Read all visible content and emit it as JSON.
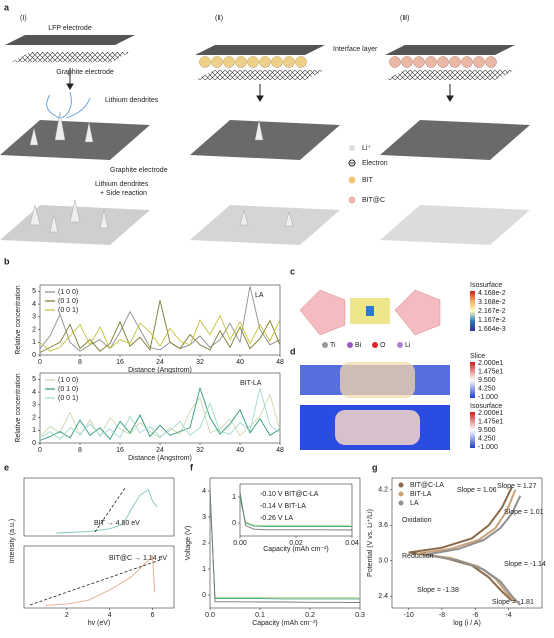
{
  "panels": {
    "a": {
      "letter": "a",
      "col1": "(Ⅰ)",
      "col2": "(Ⅱ)",
      "col3": "(Ⅲ)",
      "lfp": "LFP electrode",
      "graphite_top": "Graphite electrode",
      "interface": "Interface layer",
      "dendrites": "Lithium dendrites",
      "graphite_mid": "Graphite electrode",
      "dendrites2": "Lithium dendrites",
      "side": "+ Side reaction",
      "legend": [
        "Li⁺",
        "Electron",
        "BIT",
        "BIT@C"
      ]
    },
    "b": {
      "letter": "b"
    },
    "c": {
      "letter": "c",
      "bar_title": "Isosurface",
      "bar_labels": [
        "4.168e-2",
        "3.168e-2",
        "2.167e-2",
        "1.167e-2",
        "1.664e-3"
      ],
      "atoms": [
        "Ti",
        "Bi",
        "O",
        "Li"
      ]
    },
    "d": {
      "letter": "d",
      "bar1_title": "Slice",
      "bar1_labels": [
        "2.000e1",
        "1.475e1",
        "9.500",
        "4.250",
        "-1.000"
      ],
      "bar2_title": "Isosurface",
      "bar2_labels": [
        "2.000e1",
        "1.475e1",
        "9.500",
        "4.250",
        "-1.000"
      ]
    },
    "e": {
      "letter": "e"
    },
    "f": {
      "letter": "f"
    },
    "g": {
      "letter": "g"
    }
  },
  "chart_data": [
    {
      "type": "line",
      "ylabel": "Relative concentration",
      "xlabel": "Distance (Angstrom)",
      "annotations": [
        "LA"
      ],
      "legend": "upper left",
      "x": [
        0,
        2,
        4,
        6,
        8,
        10,
        12,
        14,
        16,
        18,
        20,
        22,
        24,
        26,
        28,
        30,
        32,
        34,
        36,
        38,
        40,
        42,
        44,
        46,
        48
      ],
      "xlim": [
        0,
        48
      ],
      "xticks": [
        0,
        8,
        16,
        24,
        32,
        40,
        48
      ],
      "ylim": [
        0,
        5.5
      ],
      "yticks": [
        0,
        1,
        2,
        3,
        4,
        5
      ],
      "series": [
        {
          "name": "(1 0 0)",
          "color": "#8c8c8c",
          "values": [
            0.5,
            1.5,
            3.2,
            1.0,
            0.3,
            0.8,
            1.2,
            0.5,
            1.8,
            3.4,
            2.0,
            0.6,
            0.4,
            1.0,
            0.5,
            0.8,
            1.5,
            0.6,
            1.2,
            2.5,
            1.0,
            5.4,
            2.0,
            0.8,
            1.2
          ]
        },
        {
          "name": "(0 1 0)",
          "color": "#7d7a2a",
          "values": [
            0.2,
            0.6,
            1.0,
            2.4,
            0.5,
            1.2,
            0.3,
            0.9,
            2.6,
            0.7,
            1.4,
            0.4,
            4.3,
            1.0,
            0.5,
            1.6,
            0.8,
            0.4,
            1.9,
            0.6,
            2.2,
            0.5,
            1.3,
            2.7,
            0.8
          ]
        },
        {
          "name": "(0 0 1)",
          "color": "#c4c23a",
          "values": [
            1.0,
            0.3,
            0.6,
            1.5,
            2.4,
            0.8,
            2.2,
            0.5,
            1.2,
            0.9,
            2.5,
            1.8,
            0.7,
            2.1,
            1.1,
            0.8,
            2.7,
            1.6,
            3.1,
            1.2,
            2.6,
            0.9,
            2.4,
            1.1,
            2.8
          ]
        }
      ]
    },
    {
      "type": "line",
      "ylabel": "Relative concentration",
      "xlabel": "Distance (Angstrom)",
      "annotations": [
        "BIT-LA"
      ],
      "legend": "upper left",
      "x": [
        0,
        2,
        4,
        6,
        8,
        10,
        12,
        14,
        16,
        18,
        20,
        22,
        24,
        26,
        28,
        30,
        32,
        34,
        36,
        38,
        40,
        42,
        44,
        46,
        48
      ],
      "xlim": [
        0,
        48
      ],
      "xticks": [
        0,
        8,
        16,
        24,
        32,
        40,
        48
      ],
      "ylim": [
        0,
        5.5
      ],
      "yticks": [
        0,
        1,
        2,
        3,
        4,
        5
      ],
      "series": [
        {
          "name": "(1 0 0)",
          "color": "#c9d9b0",
          "values": [
            0.5,
            1.3,
            0.8,
            2.4,
            0.6,
            1.8,
            0.5,
            2.0,
            1.1,
            0.7,
            1.6,
            0.9,
            0.4,
            1.2,
            0.7,
            2.5,
            3.6,
            0.8,
            1.1,
            1.9,
            0.6,
            1.3,
            2.1,
            3.8,
            1.0
          ]
        },
        {
          "name": "(0 1 0)",
          "color": "#2a9a78",
          "values": [
            0.2,
            0.5,
            0.9,
            0.4,
            1.8,
            0.6,
            1.2,
            0.3,
            1.7,
            0.8,
            2.2,
            0.5,
            1.4,
            0.6,
            0.9,
            1.2,
            4.3,
            2.0,
            0.7,
            1.5,
            2.6,
            0.8,
            1.9,
            0.6,
            1.1
          ]
        },
        {
          "name": "(0 0 1)",
          "color": "#9fd8cf",
          "values": [
            0.4,
            0.9,
            0.3,
            1.2,
            0.7,
            1.5,
            0.6,
            1.1,
            0.4,
            2.1,
            0.8,
            1.3,
            0.5,
            1.0,
            1.7,
            0.6,
            1.2,
            3.1,
            0.9,
            0.7,
            1.6,
            1.0,
            4.3,
            1.4,
            0.8
          ]
        }
      ]
    },
    {
      "type": "line",
      "annotations": [
        "BIT → 4.60 eV"
      ],
      "x": [
        1.5,
        2,
        3,
        4,
        4.6,
        5,
        5.4,
        5.8,
        6.0,
        6.2
      ],
      "xlim": [
        0,
        7
      ],
      "ylim": [
        0,
        2
      ],
      "series": [
        {
          "color": "#7fc6c0",
          "values": [
            0.1,
            0.12,
            0.15,
            0.25,
            0.4,
            0.9,
            1.4,
            1.6,
            1.2,
            1.0
          ]
        }
      ]
    },
    {
      "type": "line",
      "ylabel": "Intensity (a.u.)",
      "xlabel": "hv (eV)",
      "annotations": [
        "BIT@C → 1.14 eV"
      ],
      "x": [
        1,
        2,
        3,
        4,
        5,
        5.5,
        6,
        6.1
      ],
      "xlim": [
        0,
        7
      ],
      "xticks": [
        2,
        4,
        6
      ],
      "ylim": [
        0,
        1.2
      ],
      "series": [
        {
          "color": "#e8a98a",
          "values": [
            0.05,
            0.08,
            0.15,
            0.35,
            0.6,
            0.8,
            1.0,
            0.3
          ]
        }
      ]
    },
    {
      "type": "line",
      "ylabel": "Voltage (V)",
      "xlabel": "Capacity (mAh cm⁻²)",
      "x": [
        0,
        0.01,
        0.02,
        0.05,
        0.1,
        0.15,
        0.2,
        0.25,
        0.3
      ],
      "xlim": [
        0,
        0.3
      ],
      "xticks": [
        {
          "value": 0,
          "label": "0.0"
        },
        0.1,
        0.2,
        0.3
      ],
      "ylim": [
        -0.5,
        4.5
      ],
      "yticks": [
        0,
        1,
        2,
        3,
        4
      ],
      "series": [
        {
          "color": "#b9dc9a",
          "values": [
            3.9,
            -0.1,
            -0.1,
            -0.1,
            -0.1,
            -0.1,
            -0.1,
            -0.1,
            -0.1
          ]
        },
        {
          "color": "#3aa07a",
          "values": [
            4.0,
            -0.14,
            -0.14,
            -0.14,
            -0.14,
            -0.15,
            -0.15,
            -0.15,
            -0.15
          ]
        },
        {
          "color": "#777777",
          "values": [
            4.1,
            -0.26,
            -0.26,
            -0.26,
            -0.27,
            -0.27,
            -0.28,
            -0.28,
            -0.29
          ]
        }
      ]
    },
    {
      "type": "line",
      "xlabel": "Capacity (mAh cm⁻²)",
      "annotations": [
        "-0.10 V BIT@C-LA",
        "-0.14 V BIT-LA",
        "-0.26 V LA"
      ],
      "x": [
        0,
        0.002,
        0.005,
        0.01,
        0.02,
        0.03,
        0.04
      ],
      "xlim": [
        0,
        0.04
      ],
      "xticks": [
        {
          "value": 0,
          "label": "0.00"
        },
        {
          "value": 0.02,
          "label": "0.02"
        },
        {
          "value": 0.04,
          "label": "0.04"
        }
      ],
      "ylim": [
        -0.5,
        1.5
      ],
      "yticks": [
        0,
        1
      ],
      "series": [
        {
          "color": "#b9dc9a",
          "values": [
            0.9,
            0.05,
            -0.08,
            -0.1,
            -0.1,
            -0.1,
            -0.1
          ]
        },
        {
          "color": "#3aa07a",
          "values": [
            1.0,
            0.0,
            -0.12,
            -0.14,
            -0.14,
            -0.14,
            -0.14
          ]
        },
        {
          "color": "#777777",
          "values": [
            1.2,
            -0.1,
            -0.24,
            -0.26,
            -0.26,
            -0.26,
            -0.27
          ]
        }
      ]
    },
    {
      "type": "line",
      "ylabel": "Potential (V vs. Li⁺/Li)",
      "xlabel": "log (i / A)",
      "legend": "upper left",
      "annotations": [
        "Oxidation",
        "Reduction",
        "Slope = 1.06",
        "Slope = 1.27",
        "Slope = 1.01",
        "Slope = -1.14",
        "Slope = -1.38",
        "Slope = -1.81"
      ],
      "xlim": [
        -11,
        -2
      ],
      "xticks": [
        -10,
        -8,
        -6,
        -4
      ],
      "ylim": [
        2.2,
        4.4
      ],
      "yticks": [
        2.4,
        {
          "value": 3,
          "label": "3.0"
        },
        3.6,
        4.2
      ],
      "series": [
        {
          "name": "BIT@C-LA",
          "color": "#8a6a4a",
          "x": [
            -3.8,
            -4.4,
            -5.2,
            -6.2,
            -8,
            -10,
            -8,
            -6.2,
            -5.2,
            -4.4,
            -3.8
          ],
          "values": [
            4.25,
            3.9,
            3.6,
            3.38,
            3.22,
            3.14,
            3.06,
            2.92,
            2.72,
            2.48,
            2.32
          ]
        },
        {
          "name": "BIT-LA",
          "color": "#c9a27a",
          "x": [
            -3.6,
            -4.1,
            -4.8,
            -5.8,
            -7.5,
            -9.5,
            -7.5,
            -5.8,
            -4.8,
            -4.1,
            -3.6
          ],
          "values": [
            4.2,
            3.85,
            3.55,
            3.35,
            3.2,
            3.12,
            3.05,
            2.9,
            2.7,
            2.45,
            2.3
          ]
        },
        {
          "name": "LA",
          "color": "#8f8f8f",
          "x": [
            -3.3,
            -3.8,
            -4.5,
            -5.5,
            -7,
            -9,
            -7,
            -5.5,
            -4.5,
            -3.8,
            -3.3
          ],
          "values": [
            4.1,
            3.8,
            3.55,
            3.35,
            3.2,
            3.1,
            3.0,
            2.85,
            2.65,
            2.4,
            2.25
          ]
        }
      ]
    }
  ]
}
